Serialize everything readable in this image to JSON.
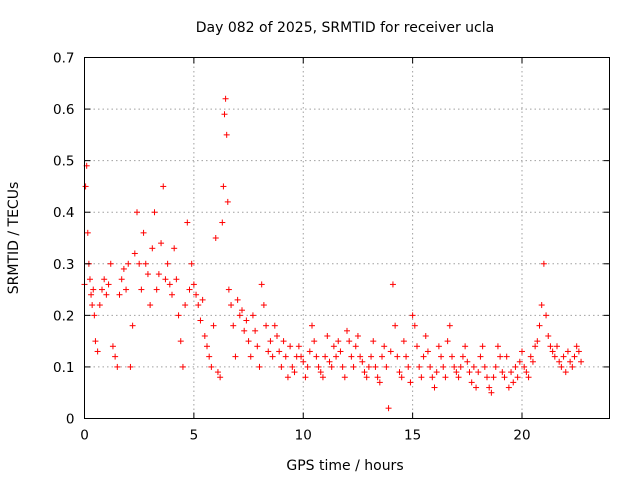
{
  "chart_data": {
    "type": "scatter",
    "title": "Day 082 of 2025, SRMTID for receiver ucla",
    "xlabel": "GPS time / hours",
    "ylabel": "SRMTID / TECUs",
    "xlim": [
      0,
      24
    ],
    "ylim": [
      0,
      0.7
    ],
    "xticks": [
      0,
      5,
      10,
      15,
      20
    ],
    "xtick_labels": [
      "0",
      "5",
      "10",
      "15",
      "20"
    ],
    "yticks": [
      0,
      0.1,
      0.2,
      0.3,
      0.4,
      0.5,
      0.6,
      0.7
    ],
    "ytick_labels": [
      "0",
      "0.1",
      "0.2",
      "0.3",
      "0.4",
      "0.5",
      "0.6",
      "0.7"
    ],
    "grid": true,
    "marker": "+",
    "color": "#ff0000",
    "series": [
      {
        "name": "SRMTID",
        "x": [
          0.0,
          0.05,
          0.1,
          0.15,
          0.2,
          0.25,
          0.3,
          0.35,
          0.4,
          0.45,
          0.5,
          0.6,
          0.7,
          0.8,
          0.9,
          1.0,
          1.1,
          1.2,
          1.3,
          1.4,
          1.5,
          1.6,
          1.7,
          1.8,
          1.9,
          2.0,
          2.1,
          2.2,
          2.3,
          2.4,
          2.5,
          2.6,
          2.7,
          2.8,
          2.9,
          3.0,
          3.1,
          3.2,
          3.3,
          3.4,
          3.5,
          3.6,
          3.7,
          3.8,
          3.9,
          4.0,
          4.1,
          4.2,
          4.3,
          4.4,
          4.5,
          4.6,
          4.7,
          4.8,
          4.9,
          5.0,
          5.1,
          5.2,
          5.3,
          5.4,
          5.5,
          5.6,
          5.7,
          5.8,
          5.9,
          6.0,
          6.1,
          6.2,
          6.3,
          6.35,
          6.4,
          6.45,
          6.5,
          6.55,
          6.6,
          6.7,
          6.8,
          6.9,
          7.0,
          7.1,
          7.2,
          7.3,
          7.4,
          7.5,
          7.6,
          7.7,
          7.8,
          7.9,
          8.0,
          8.1,
          8.2,
          8.3,
          8.4,
          8.5,
          8.6,
          8.7,
          8.8,
          8.9,
          9.0,
          9.1,
          9.2,
          9.3,
          9.4,
          9.5,
          9.6,
          9.7,
          9.8,
          9.9,
          10.0,
          10.1,
          10.2,
          10.3,
          10.4,
          10.5,
          10.6,
          10.7,
          10.8,
          10.9,
          11.0,
          11.1,
          11.2,
          11.3,
          11.4,
          11.5,
          11.6,
          11.7,
          11.8,
          11.9,
          12.0,
          12.1,
          12.2,
          12.3,
          12.4,
          12.5,
          12.6,
          12.7,
          12.8,
          12.9,
          13.0,
          13.1,
          13.2,
          13.3,
          13.4,
          13.5,
          13.6,
          13.7,
          13.8,
          13.9,
          14.0,
          14.1,
          14.2,
          14.3,
          14.4,
          14.5,
          14.6,
          14.7,
          14.8,
          14.9,
          15.0,
          15.1,
          15.2,
          15.3,
          15.4,
          15.5,
          15.6,
          15.7,
          15.8,
          15.9,
          16.0,
          16.1,
          16.2,
          16.3,
          16.4,
          16.5,
          16.6,
          16.7,
          16.8,
          16.9,
          17.0,
          17.1,
          17.2,
          17.3,
          17.4,
          17.5,
          17.6,
          17.7,
          17.8,
          17.9,
          18.0,
          18.1,
          18.2,
          18.3,
          18.4,
          18.5,
          18.6,
          18.7,
          18.8,
          18.9,
          19.0,
          19.1,
          19.2,
          19.3,
          19.4,
          19.5,
          19.6,
          19.7,
          19.8,
          19.9,
          20.0,
          20.1,
          20.2,
          20.3,
          20.4,
          20.5,
          20.6,
          20.7,
          20.8,
          20.9,
          21.0,
          21.1,
          21.2,
          21.3,
          21.4,
          21.5,
          21.6,
          21.7,
          21.8,
          21.9,
          22.0,
          22.1,
          22.2,
          22.3,
          22.4,
          22.5,
          22.6,
          22.7
        ],
        "y": [
          0.26,
          0.45,
          0.49,
          0.36,
          0.3,
          0.27,
          0.24,
          0.22,
          0.25,
          0.2,
          0.15,
          0.13,
          0.22,
          0.25,
          0.27,
          0.24,
          0.26,
          0.3,
          0.14,
          0.12,
          0.1,
          0.24,
          0.27,
          0.29,
          0.25,
          0.3,
          0.1,
          0.18,
          0.32,
          0.4,
          0.3,
          0.25,
          0.36,
          0.3,
          0.28,
          0.22,
          0.33,
          0.4,
          0.25,
          0.28,
          0.34,
          0.45,
          0.27,
          0.3,
          0.26,
          0.24,
          0.33,
          0.27,
          0.2,
          0.15,
          0.1,
          0.22,
          0.38,
          0.25,
          0.3,
          0.26,
          0.24,
          0.22,
          0.19,
          0.23,
          0.16,
          0.14,
          0.12,
          0.1,
          0.18,
          0.35,
          0.09,
          0.08,
          0.38,
          0.45,
          0.59,
          0.62,
          0.55,
          0.42,
          0.25,
          0.22,
          0.18,
          0.12,
          0.23,
          0.2,
          0.21,
          0.17,
          0.19,
          0.15,
          0.12,
          0.2,
          0.17,
          0.14,
          0.1,
          0.26,
          0.22,
          0.18,
          0.13,
          0.15,
          0.12,
          0.18,
          0.16,
          0.13,
          0.1,
          0.15,
          0.12,
          0.08,
          0.14,
          0.1,
          0.09,
          0.12,
          0.14,
          0.12,
          0.11,
          0.08,
          0.1,
          0.13,
          0.18,
          0.15,
          0.12,
          0.1,
          0.09,
          0.08,
          0.12,
          0.16,
          0.11,
          0.1,
          0.14,
          0.12,
          0.15,
          0.13,
          0.1,
          0.08,
          0.17,
          0.15,
          0.12,
          0.1,
          0.14,
          0.16,
          0.12,
          0.11,
          0.09,
          0.08,
          0.1,
          0.12,
          0.15,
          0.1,
          0.08,
          0.07,
          0.12,
          0.14,
          0.1,
          0.02,
          0.13,
          0.26,
          0.18,
          0.12,
          0.09,
          0.08,
          0.15,
          0.12,
          0.1,
          0.07,
          0.2,
          0.18,
          0.14,
          0.1,
          0.08,
          0.12,
          0.16,
          0.13,
          0.1,
          0.08,
          0.06,
          0.09,
          0.14,
          0.12,
          0.1,
          0.08,
          0.15,
          0.18,
          0.12,
          0.1,
          0.09,
          0.08,
          0.1,
          0.12,
          0.14,
          0.11,
          0.09,
          0.07,
          0.1,
          0.06,
          0.09,
          0.12,
          0.14,
          0.1,
          0.08,
          0.06,
          0.05,
          0.08,
          0.1,
          0.14,
          0.12,
          0.09,
          0.08,
          0.12,
          0.06,
          0.09,
          0.07,
          0.1,
          0.08,
          0.11,
          0.13,
          0.1,
          0.09,
          0.08,
          0.12,
          0.11,
          0.14,
          0.15,
          0.18,
          0.22,
          0.3,
          0.2,
          0.16,
          0.14,
          0.13,
          0.12,
          0.14,
          0.11,
          0.1,
          0.12,
          0.09,
          0.13,
          0.11,
          0.1,
          0.12,
          0.14,
          0.13,
          0.11
        ]
      }
    ]
  }
}
